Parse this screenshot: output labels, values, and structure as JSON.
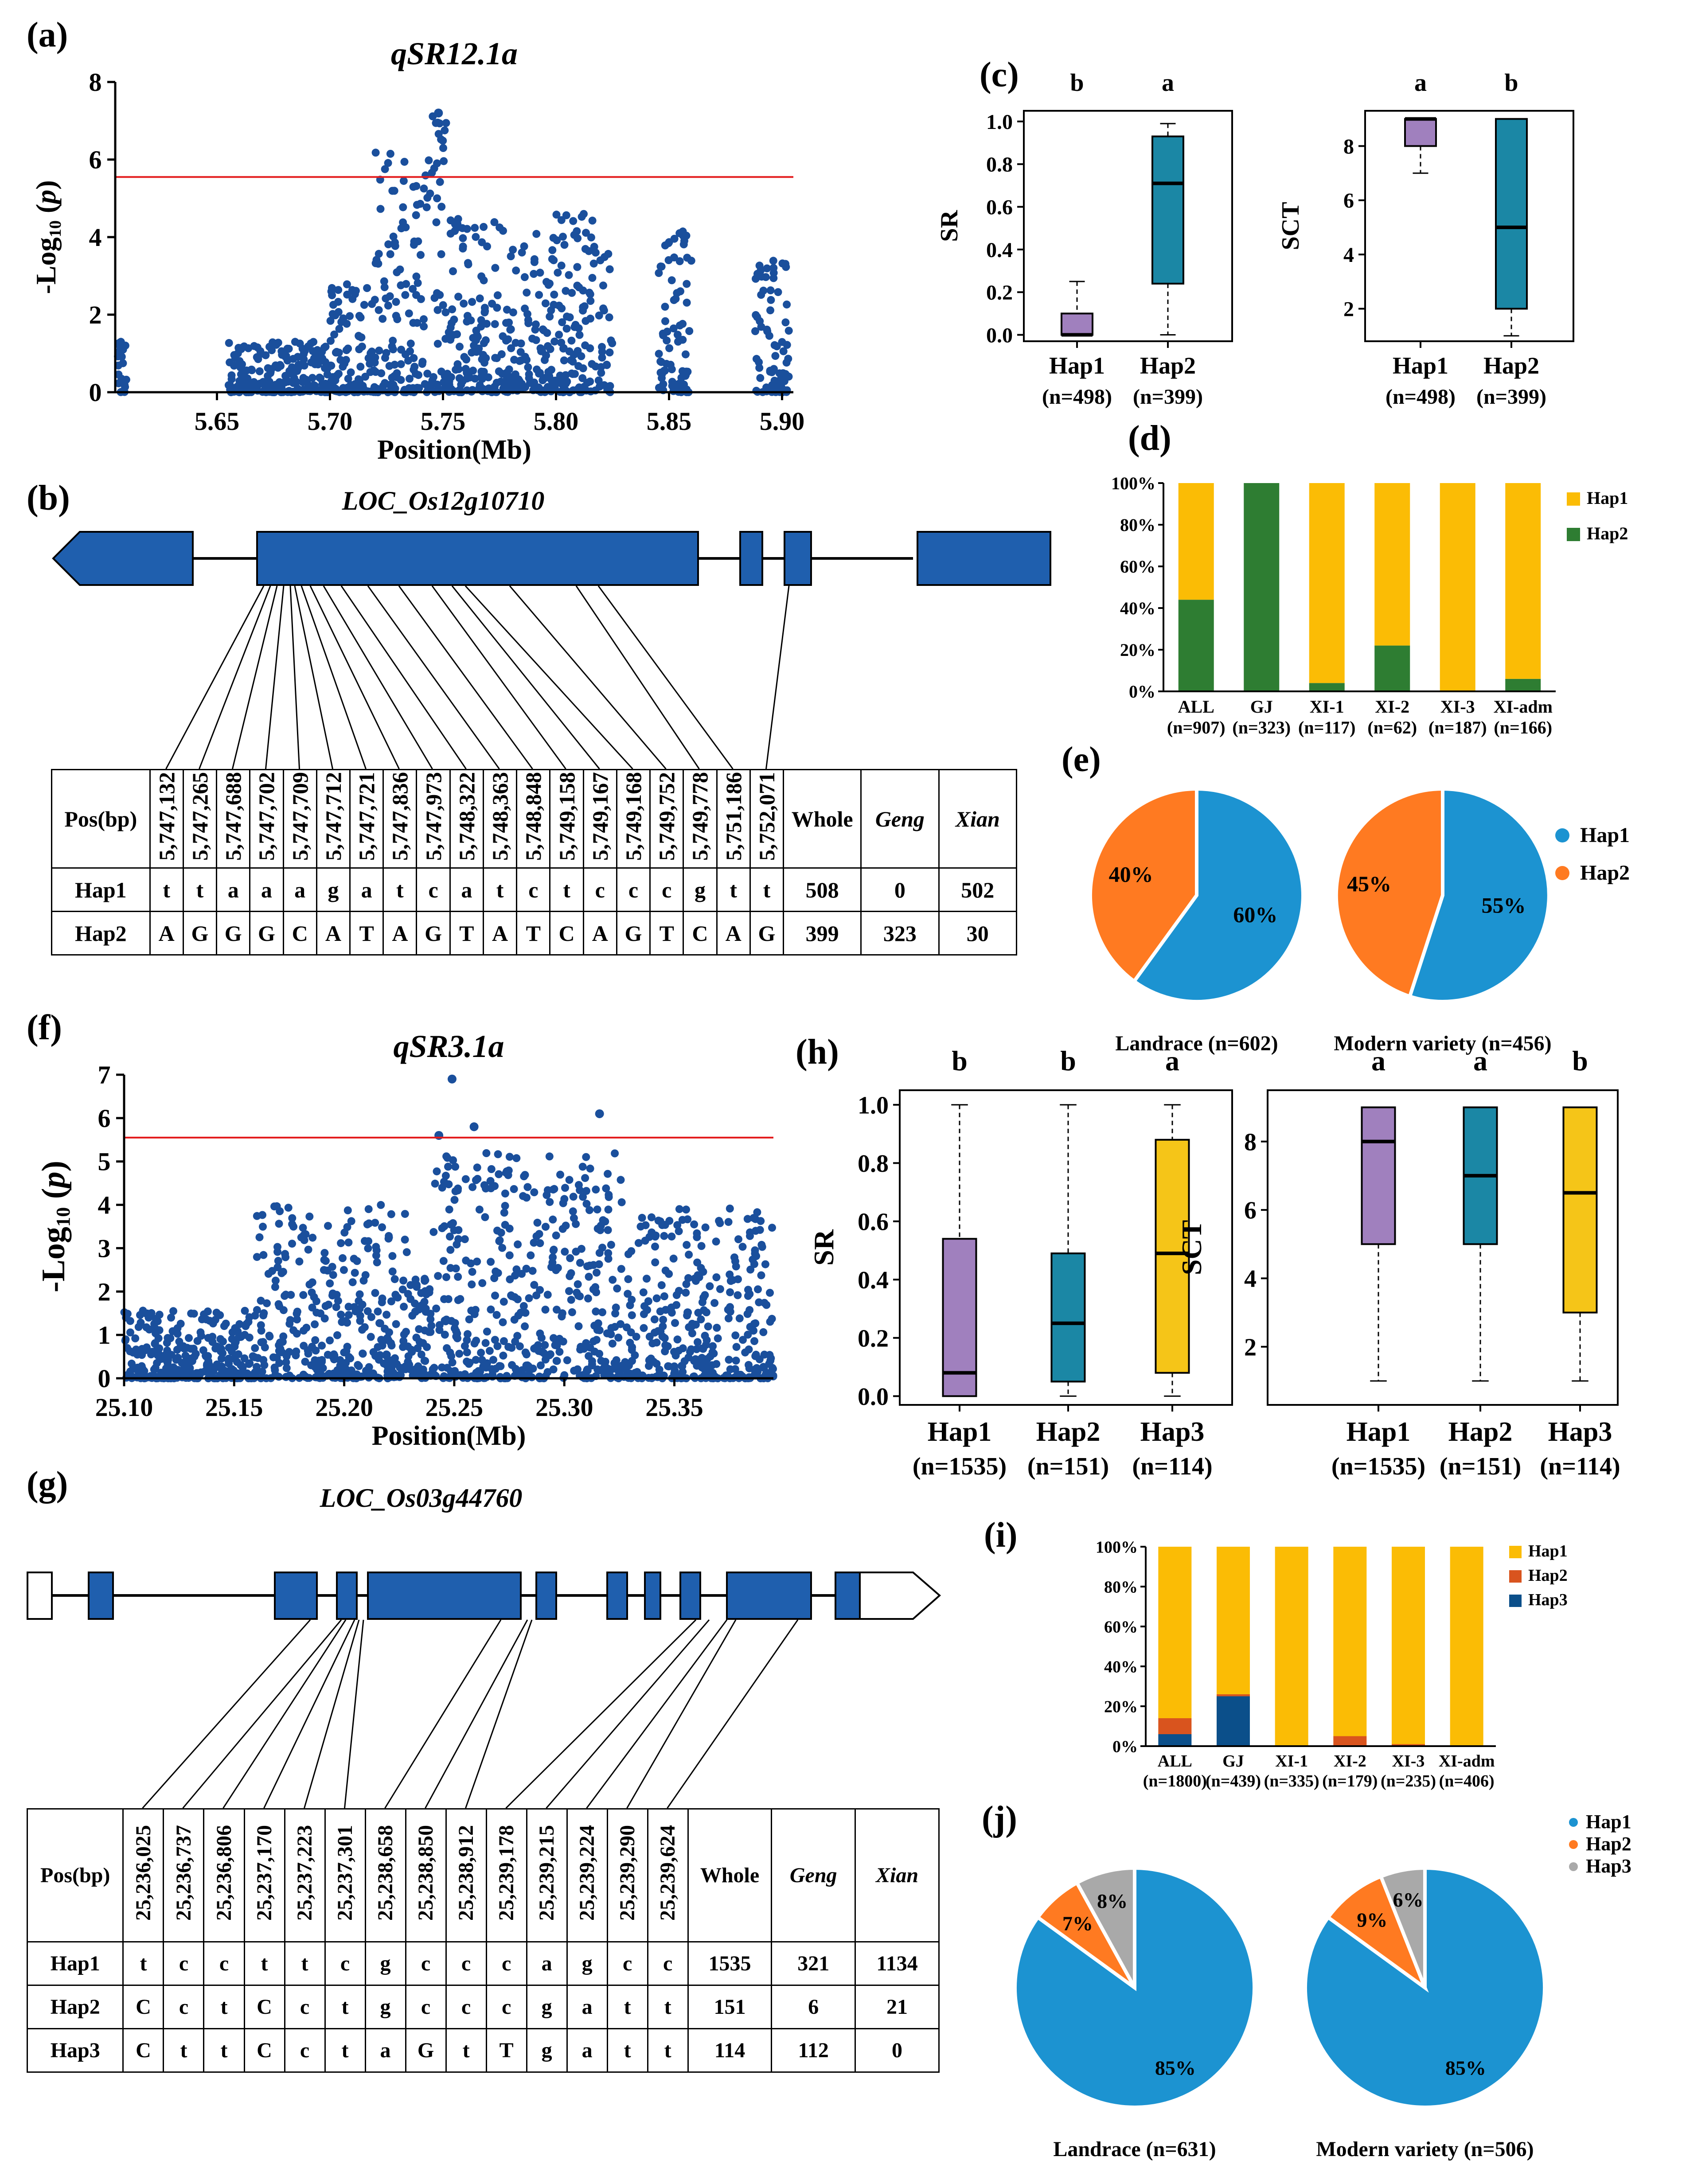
{
  "panel_letters": {
    "a": "(a)",
    "b": "(b)",
    "c": "(c)",
    "d": "(d)",
    "e": "(e)",
    "f": "(f)",
    "g": "(g)",
    "h": "(h)",
    "i": "(i)",
    "j": "(j)"
  },
  "colors": {
    "gwas": "#1a4f9c",
    "threshold": "#e31a1c",
    "gene": "#1f5fae",
    "hap1": "#a080be",
    "hap2": "#1b87a5",
    "hap3": "#f5c518",
    "bar_yellow": "#fbbc05",
    "bar_green": "#2e7d32",
    "bar_orange": "#d9541e",
    "bar_navy": "#0b4f8a",
    "pie_blue": "#1c93d1",
    "pie_orange": "#ff7a21",
    "pie_gray": "#a9a9a9"
  },
  "chart_data": [
    {
      "id": "a",
      "type": "scatter",
      "title": "qSR12.1a",
      "xlabel": "Position(Mb)",
      "ylabel": "-Log10 (p)",
      "ylabel_main": "-Log",
      "ylabel_sub": "10",
      "ylabel_tail": " (p)",
      "xlim": [
        5.605,
        5.905
      ],
      "ylim": [
        0,
        8
      ],
      "xticks": [
        5.65,
        5.7,
        5.75,
        5.8,
        5.85,
        5.9
      ],
      "xtick_labels": [
        "5.65",
        "5.70",
        "5.75",
        "5.80",
        "5.85",
        "5.90"
      ],
      "yticks": [
        0,
        2,
        4,
        6,
        8
      ],
      "threshold": 5.55,
      "peak": {
        "x": 5.748,
        "y": 7.2
      },
      "clusters": [
        {
          "x0": 5.606,
          "x1": 5.61,
          "ymax": 1.3
        },
        {
          "x0": 5.655,
          "x1": 5.7,
          "ymax": 1.3
        },
        {
          "x0": 5.7,
          "x1": 5.72,
          "ymax": 2.8
        },
        {
          "x0": 5.72,
          "x1": 5.745,
          "ymax": 6.2
        },
        {
          "x0": 5.745,
          "x1": 5.752,
          "ymax": 7.2
        },
        {
          "x0": 5.752,
          "x1": 5.78,
          "ymax": 4.5
        },
        {
          "x0": 5.78,
          "x1": 5.8,
          "ymax": 4.2
        },
        {
          "x0": 5.8,
          "x1": 5.825,
          "ymax": 4.6
        },
        {
          "x0": 5.845,
          "x1": 5.86,
          "ymax": 4.2
        },
        {
          "x0": 5.888,
          "x1": 5.903,
          "ymax": 3.6
        }
      ]
    },
    {
      "id": "c1",
      "type": "box",
      "ylabel": "SR",
      "categories": [
        "Hap1",
        "Hap2"
      ],
      "ns": [
        "(n=498)",
        "(n=399)"
      ],
      "letters": [
        "b",
        "a"
      ],
      "ylim": [
        -0.03,
        1.05
      ],
      "yticks": [
        0.0,
        0.2,
        0.4,
        0.6,
        0.8,
        1.0
      ],
      "ytick_labels": [
        "0.0",
        "0.2",
        "0.4",
        "0.6",
        "0.8",
        "1.0"
      ],
      "boxes": [
        {
          "min": 0,
          "q1": 0,
          "median": 0,
          "q3": 0.1,
          "max": 0.25
        },
        {
          "min": 0,
          "q1": 0.24,
          "median": 0.71,
          "q3": 0.93,
          "max": 0.99
        }
      ]
    },
    {
      "id": "c2",
      "type": "box",
      "ylabel": "SCT",
      "categories": [
        "Hap1",
        "Hap2"
      ],
      "ns": [
        "(n=498)",
        "(n=399)"
      ],
      "letters": [
        "a",
        "b"
      ],
      "ylim": [
        0.8,
        9.3
      ],
      "yticks": [
        2,
        4,
        6,
        8
      ],
      "ytick_labels": [
        "2",
        "4",
        "6",
        "8"
      ],
      "boxes": [
        {
          "min": 7,
          "q1": 8,
          "median": 9,
          "q3": 9,
          "max": 9
        },
        {
          "min": 1,
          "q1": 2,
          "median": 5,
          "q3": 9,
          "max": 9
        }
      ]
    },
    {
      "id": "d",
      "type": "bar",
      "stacked": true,
      "categories": [
        "ALL",
        "GJ",
        "XI-1",
        "XI-2",
        "XI-3",
        "XI-adm"
      ],
      "ns": [
        "(n=907)",
        "(n=323)",
        "(n=117)",
        "(n=62)",
        "(n=187)",
        "(n=166)"
      ],
      "series": [
        {
          "name": "Hap1",
          "values": [
            56,
            0,
            96,
            78,
            100,
            94
          ]
        },
        {
          "name": "Hap2",
          "values": [
            44,
            100,
            4,
            22,
            0,
            6
          ]
        }
      ],
      "ylim": [
        0,
        100
      ],
      "yticks": [
        "0%",
        "20%",
        "40%",
        "60%",
        "80%",
        "100%"
      ]
    },
    {
      "id": "e1",
      "type": "pie",
      "title": "Landrace (n=602)",
      "labels": [
        "Hap1",
        "Hap2"
      ],
      "values": [
        60,
        40
      ],
      "value_labels": [
        "60%",
        "40%"
      ]
    },
    {
      "id": "e2",
      "type": "pie",
      "title": "Modern variety (n=456)",
      "labels": [
        "Hap1",
        "Hap2"
      ],
      "values": [
        55,
        45
      ],
      "value_labels": [
        "55%",
        "45%"
      ]
    },
    {
      "id": "f",
      "type": "scatter",
      "title": "qSR3.1a",
      "xlabel": "Position(Mb)",
      "ylabel": "-Log10 (p)",
      "ylabel_main": "-Log",
      "ylabel_sub": "10",
      "ylabel_tail": " (p)",
      "xlim": [
        25.1,
        25.395
      ],
      "ylim": [
        0,
        7
      ],
      "xticks": [
        25.1,
        25.15,
        25.2,
        25.25,
        25.3,
        25.35
      ],
      "xtick_labels": [
        "25.10",
        "25.15",
        "25.20",
        "25.25",
        "25.30",
        "25.35"
      ],
      "yticks": [
        0,
        1,
        2,
        3,
        4,
        5,
        6,
        7
      ],
      "threshold": 5.55,
      "highlights": [
        {
          "x": 25.249,
          "y": 6.9
        },
        {
          "x": 25.316,
          "y": 6.1
        },
        {
          "x": 25.259,
          "y": 5.8
        },
        {
          "x": 25.243,
          "y": 5.6
        }
      ],
      "clusters": [
        {
          "x0": 25.1,
          "x1": 25.16,
          "ymax": 1.6
        },
        {
          "x0": 25.16,
          "x1": 25.23,
          "ymax": 4.0
        },
        {
          "x0": 25.23,
          "x1": 25.24,
          "ymax": 2.3
        },
        {
          "x0": 25.24,
          "x1": 25.27,
          "ymax": 5.2
        },
        {
          "x0": 25.27,
          "x1": 25.33,
          "ymax": 5.2
        },
        {
          "x0": 25.33,
          "x1": 25.395,
          "ymax": 4.0
        }
      ]
    },
    {
      "id": "h1",
      "type": "box",
      "ylabel": "SR",
      "categories": [
        "Hap1",
        "Hap2",
        "Hap3"
      ],
      "ns": [
        "(n=1535)",
        "(n=151)",
        "(n=114)"
      ],
      "letters": [
        "b",
        "b",
        "a"
      ],
      "ylim": [
        -0.03,
        1.05
      ],
      "yticks": [
        0.0,
        0.2,
        0.4,
        0.6,
        0.8,
        1.0
      ],
      "ytick_labels": [
        "0.0",
        "0.2",
        "0.4",
        "0.6",
        "0.8",
        "1.0"
      ],
      "boxes": [
        {
          "min": 0,
          "q1": 0,
          "median": 0.08,
          "q3": 0.54,
          "max": 1.0
        },
        {
          "min": 0,
          "q1": 0.05,
          "median": 0.25,
          "q3": 0.49,
          "max": 1.0
        },
        {
          "min": 0,
          "q1": 0.08,
          "median": 0.49,
          "q3": 0.88,
          "max": 1.0
        }
      ]
    },
    {
      "id": "h2",
      "type": "box",
      "ylabel": "SCT",
      "categories": [
        "Hap1",
        "Hap2",
        "Hap3"
      ],
      "ns": [
        "(n=1535)",
        "(n=151)",
        "(n=114)"
      ],
      "letters": [
        "a",
        "a",
        "b"
      ],
      "ylim": [
        0.3,
        9.5
      ],
      "yticks": [
        2,
        4,
        6,
        8
      ],
      "ytick_labels": [
        "2",
        "4",
        "6",
        "8"
      ],
      "boxes": [
        {
          "min": 1,
          "q1": 5,
          "median": 8,
          "q3": 9,
          "max": 9
        },
        {
          "min": 1,
          "q1": 5,
          "median": 7,
          "q3": 9,
          "max": 9
        },
        {
          "min": 1,
          "q1": 3,
          "median": 6.5,
          "q3": 9,
          "max": 9
        }
      ]
    },
    {
      "id": "i",
      "type": "bar",
      "stacked": true,
      "categories": [
        "ALL",
        "GJ",
        "XI-1",
        "XI-2",
        "XI-3",
        "XI-adm"
      ],
      "ns": [
        "(n=1800)",
        "(n=439)",
        "(n=335)",
        "(n=179)",
        "(n=235)",
        "(n=406)"
      ],
      "series": [
        {
          "name": "Hap1",
          "values": [
            86,
            74,
            100,
            95,
            99,
            100
          ]
        },
        {
          "name": "Hap2",
          "values": [
            8,
            1,
            0,
            5,
            1,
            0
          ]
        },
        {
          "name": "Hap3",
          "values": [
            6,
            25,
            0,
            0,
            0,
            0
          ]
        }
      ],
      "ylim": [
        0,
        100
      ],
      "yticks": [
        "0%",
        "20%",
        "40%",
        "60%",
        "80%",
        "100%"
      ]
    },
    {
      "id": "j1",
      "type": "pie",
      "title": "Landrace (n=631)",
      "labels": [
        "Hap1",
        "Hap2",
        "Hap3"
      ],
      "values": [
        85,
        7,
        8
      ],
      "value_labels": [
        "85%",
        "7%",
        "8%"
      ]
    },
    {
      "id": "j2",
      "type": "pie",
      "title": "Modern variety (n=506)",
      "labels": [
        "Hap1",
        "Hap2",
        "Hap3"
      ],
      "values": [
        85,
        9,
        6
      ],
      "value_labels": [
        "85%",
        "9%",
        "6%"
      ]
    }
  ],
  "gene_b": {
    "name": "LOC_Os12g10710"
  },
  "gene_g": {
    "name": "LOC_Os03g44760"
  },
  "table_b": {
    "header": "Pos(bp)",
    "positions": [
      "5,747,132",
      "5,747,265",
      "5,747,688",
      "5,747,702",
      "5,747,709",
      "5,747,712",
      "5,747,721",
      "5,747,836",
      "5,747,973",
      "5,748,322",
      "5,748,363",
      "5,748,848",
      "5,749,158",
      "5,749,167",
      "5,749,168",
      "5,749,752",
      "5,749,778",
      "5,751,186",
      "5,752,071"
    ],
    "count_headers": [
      "Whole",
      "Geng",
      "Xian"
    ],
    "rows": [
      {
        "name": "Hap1",
        "alleles": [
          "t",
          "t",
          "a",
          "a",
          "a",
          "g",
          "a",
          "t",
          "c",
          "a",
          "t",
          "c",
          "t",
          "c",
          "c",
          "c",
          "g",
          "t",
          "t"
        ],
        "counts": [
          "508",
          "0",
          "502"
        ]
      },
      {
        "name": "Hap2",
        "alleles": [
          "A",
          "G",
          "G",
          "G",
          "C",
          "A",
          "T",
          "A",
          "G",
          "T",
          "A",
          "T",
          "C",
          "A",
          "G",
          "T",
          "C",
          "A",
          "G"
        ],
        "counts": [
          "399",
          "323",
          "30"
        ]
      }
    ]
  },
  "table_g": {
    "header": "Pos(bp)",
    "positions": [
      "25,236,025",
      "25,236,737",
      "25,236,806",
      "25,237,170",
      "25,237,223",
      "25,237,301",
      "25,238,658",
      "25,238,850",
      "25,238,912",
      "25,239,178",
      "25,239,215",
      "25,239,224",
      "25,239,290",
      "25,239,624"
    ],
    "count_headers": [
      "Whole",
      "Geng",
      "Xian"
    ],
    "rows": [
      {
        "name": "Hap1",
        "alleles": [
          "t",
          "c",
          "c",
          "t",
          "t",
          "c",
          "g",
          "c",
          "c",
          "c",
          "a",
          "g",
          "c",
          "c"
        ],
        "counts": [
          "1535",
          "321",
          "1134"
        ]
      },
      {
        "name": "Hap2",
        "alleles": [
          "C",
          "c",
          "t",
          "C",
          "c",
          "t",
          "g",
          "c",
          "c",
          "c",
          "g",
          "a",
          "t",
          "t"
        ],
        "counts": [
          "151",
          "6",
          "21"
        ]
      },
      {
        "name": "Hap3",
        "alleles": [
          "C",
          "t",
          "t",
          "C",
          "c",
          "t",
          "a",
          "G",
          "t",
          "T",
          "g",
          "a",
          "t",
          "t"
        ],
        "counts": [
          "114",
          "112",
          "0"
        ]
      }
    ]
  }
}
